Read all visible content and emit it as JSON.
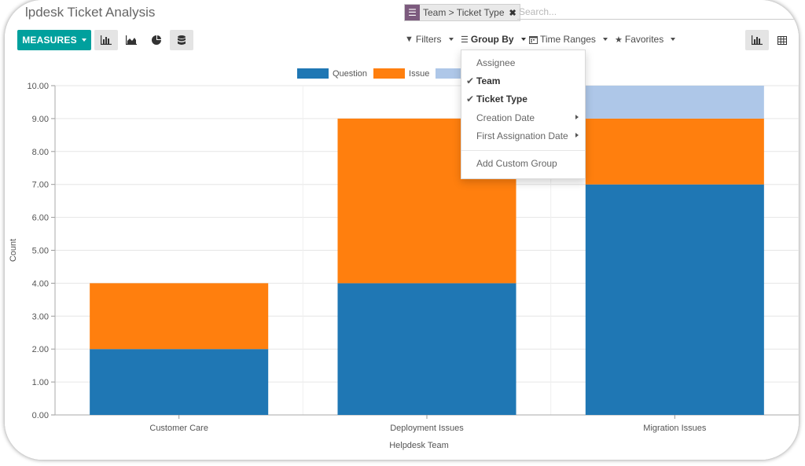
{
  "header": {
    "title": "lpdesk Ticket Analysis",
    "facet": {
      "icon": "list-icon",
      "label": "Team > Ticket Type",
      "remove_icon": "close-icon"
    },
    "search_placeholder": "Search..."
  },
  "toolbar": {
    "measures_label": "MEASURES",
    "chart_buttons": [
      {
        "name": "bar-chart-icon",
        "active": true
      },
      {
        "name": "area-chart-icon",
        "active": false
      },
      {
        "name": "pie-chart-icon",
        "active": false
      },
      {
        "name": "database-stack-icon",
        "active": true
      }
    ],
    "filters_label": "Filters",
    "groupby_label": "Group By",
    "time_ranges_label": "Time Ranges",
    "favorites_label": "Favorites",
    "view_buttons": [
      {
        "name": "graph-view-icon",
        "active": true
      },
      {
        "name": "pivot-view-icon",
        "active": false
      }
    ]
  },
  "groupby_menu": {
    "items": [
      {
        "label": "Assignee",
        "checked": false,
        "submenu": false
      },
      {
        "label": "Team",
        "checked": true,
        "submenu": false
      },
      {
        "label": "Ticket Type",
        "checked": true,
        "submenu": false
      },
      {
        "label": "Creation Date",
        "checked": false,
        "submenu": true
      },
      {
        "label": "First Assignation Date",
        "checked": false,
        "submenu": true
      }
    ],
    "custom_label": "Add Custom Group"
  },
  "chart_data": {
    "type": "bar",
    "stacked": true,
    "categories": [
      "Customer Care",
      "Deployment Issues",
      "Migration Issues"
    ],
    "series": [
      {
        "name": "Question",
        "color": "#1f77b4",
        "values": [
          2,
          4,
          7
        ]
      },
      {
        "name": "Issue",
        "color": "#ff7f0e",
        "values": [
          2,
          5,
          2
        ]
      },
      {
        "name": "",
        "color": "#aec7e8",
        "values": [
          0,
          0,
          1
        ]
      }
    ],
    "xlabel": "Helpdesk Team",
    "ylabel": "Count",
    "ylim": [
      0,
      10
    ],
    "yticks": [
      "0.00",
      "1.00",
      "2.00",
      "3.00",
      "4.00",
      "5.00",
      "6.00",
      "7.00",
      "8.00",
      "9.00",
      "10.00"
    ],
    "grid": true,
    "legend_position": "top"
  }
}
